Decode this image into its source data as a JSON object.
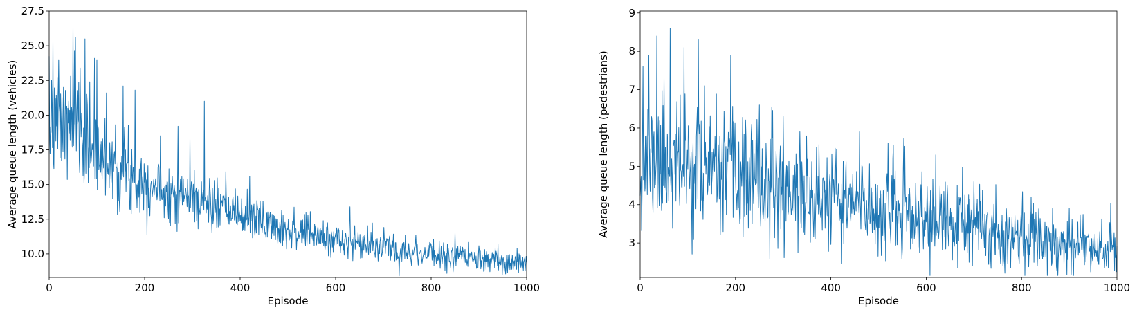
{
  "chart_data": [
    {
      "type": "line",
      "xlabel": "Episode",
      "ylabel": "Average queue length (vehicles)",
      "xlim": [
        0,
        1000
      ],
      "ylim": [
        8.3,
        27.5
      ],
      "xticks": [
        0,
        200,
        400,
        600,
        800,
        1000
      ],
      "yticks": [
        10.0,
        12.5,
        15.0,
        17.5,
        20.0,
        22.5,
        25.0,
        27.5
      ],
      "ytick_decimals": 1,
      "grid": false,
      "legend": "none",
      "color": "#1f77b4",
      "series": [
        {
          "episodes": 1000,
          "trend": [
            [
              0,
              19.0
            ],
            [
              50,
              19.2
            ],
            [
              100,
              17.2
            ],
            [
              200,
              15.2
            ],
            [
              300,
              14.0
            ],
            [
              400,
              12.8
            ],
            [
              500,
              11.8
            ],
            [
              600,
              11.0
            ],
            [
              700,
              10.5
            ],
            [
              800,
              10.0
            ],
            [
              900,
              9.5
            ],
            [
              1000,
              9.3
            ]
          ],
          "noise": [
            [
              0,
              1.9
            ],
            [
              100,
              1.8
            ],
            [
              200,
              1.2
            ],
            [
              300,
              1.0
            ],
            [
              400,
              0.8
            ],
            [
              600,
              0.6
            ],
            [
              800,
              0.5
            ],
            [
              1000,
              0.4
            ]
          ],
          "peaks": [
            [
              5,
              22.5
            ],
            [
              8,
              25.3
            ],
            [
              15,
              21.4
            ],
            [
              20,
              24.0
            ],
            [
              30,
              22.0
            ],
            [
              45,
              22.8
            ],
            [
              50,
              26.3
            ],
            [
              55,
              25.6
            ],
            [
              65,
              23.4
            ],
            [
              75,
              25.5
            ],
            [
              85,
              22.4
            ],
            [
              95,
              24.1
            ],
            [
              100,
              24.0
            ],
            [
              120,
              21.6
            ],
            [
              155,
              22.1
            ],
            [
              180,
              21.8
            ],
            [
              270,
              19.2
            ],
            [
              295,
              18.3
            ],
            [
              325,
              21.0
            ],
            [
              420,
              15.6
            ],
            [
              630,
              13.4
            ],
            [
              850,
              11.5
            ],
            [
              980,
              10.4
            ]
          ],
          "seed": 7
        }
      ]
    },
    {
      "type": "line",
      "xlabel": "Episode",
      "ylabel": "Average queue length (pedestrians)",
      "xlim": [
        0,
        1000
      ],
      "ylim": [
        2.1,
        9.05
      ],
      "xticks": [
        0,
        200,
        400,
        600,
        800,
        1000
      ],
      "yticks": [
        3,
        4,
        5,
        6,
        7,
        8,
        9
      ],
      "ytick_decimals": 0,
      "grid": false,
      "legend": "none",
      "color": "#1f77b4",
      "series": [
        {
          "episodes": 1000,
          "trend": [
            [
              0,
              5.2
            ],
            [
              100,
              5.0
            ],
            [
              200,
              4.7
            ],
            [
              300,
              4.4
            ],
            [
              400,
              4.1
            ],
            [
              500,
              3.9
            ],
            [
              600,
              3.6
            ],
            [
              700,
              3.4
            ],
            [
              800,
              3.2
            ],
            [
              900,
              3.0
            ],
            [
              1000,
              2.9
            ]
          ],
          "noise": [
            [
              0,
              0.85
            ],
            [
              200,
              0.75
            ],
            [
              500,
              0.6
            ],
            [
              800,
              0.45
            ],
            [
              1000,
              0.35
            ]
          ],
          "peaks": [
            [
              6,
              7.6
            ],
            [
              18,
              7.9
            ],
            [
              35,
              8.4
            ],
            [
              50,
              7.3
            ],
            [
              63,
              8.6
            ],
            [
              92,
              8.1
            ],
            [
              122,
              8.3
            ],
            [
              135,
              7.1
            ],
            [
              190,
              7.9
            ],
            [
              250,
              6.6
            ],
            [
              300,
              6.3
            ],
            [
              335,
              5.9
            ],
            [
              460,
              5.9
            ],
            [
              520,
              5.6
            ],
            [
              620,
              5.3
            ],
            [
              700,
              4.6
            ],
            [
              820,
              4.2
            ],
            [
              900,
              3.9
            ]
          ],
          "seed": 11
        }
      ]
    }
  ]
}
